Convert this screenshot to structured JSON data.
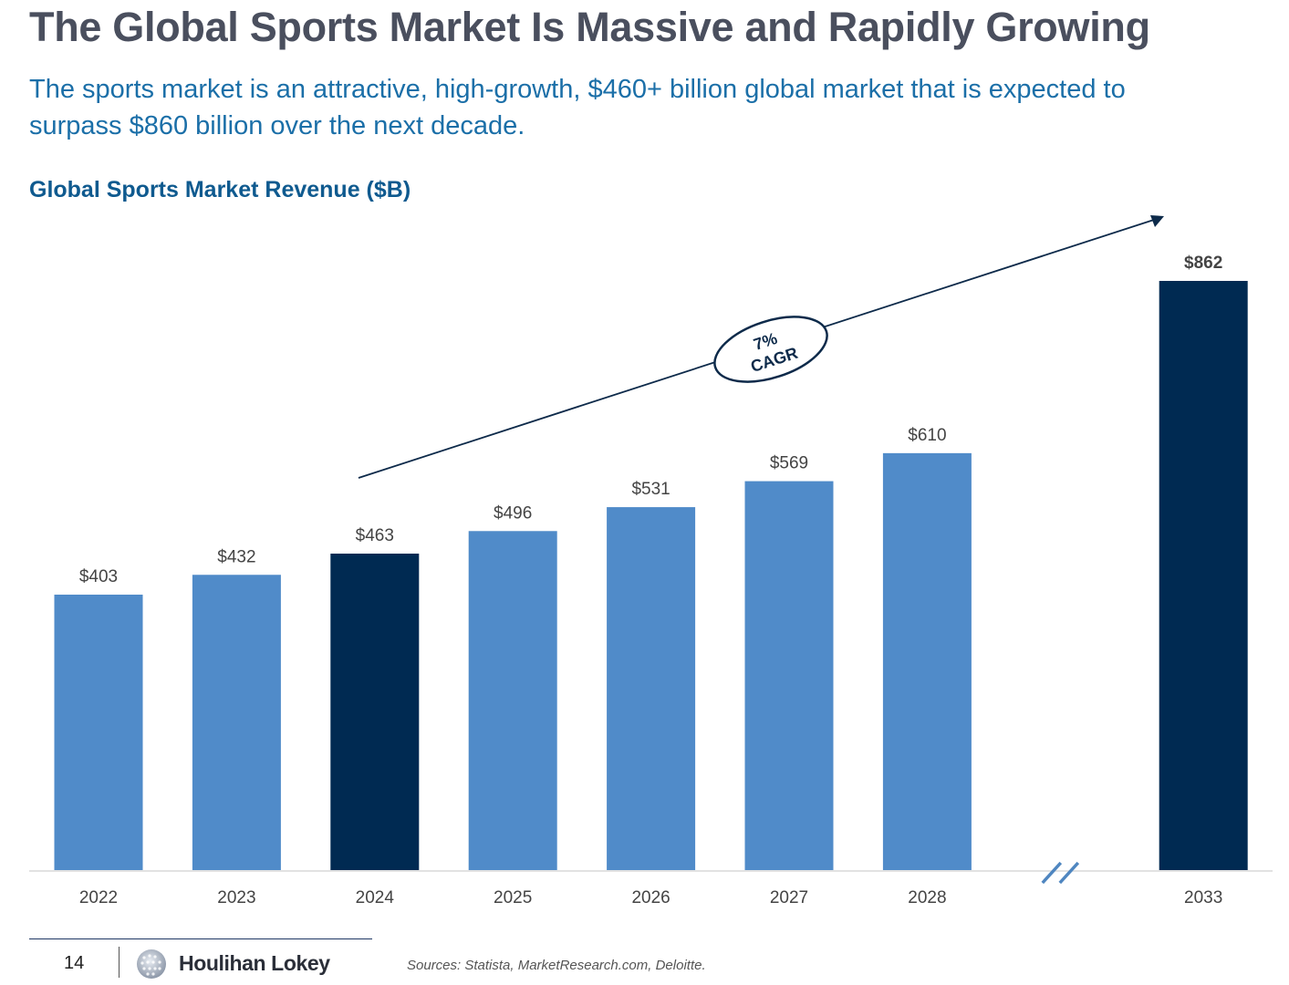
{
  "header": {
    "title": "The Global Sports Market Is Massive and Rapidly Growing",
    "subtitle": "The sports market is an attractive, high-growth, $460+ billion global market that is expected to surpass $860 billion over the next decade."
  },
  "chart_data": {
    "type": "bar",
    "title": "Global Sports Market Revenue ($B)",
    "categories": [
      "2022",
      "2023",
      "2024",
      "2025",
      "2026",
      "2027",
      "2028",
      "2033"
    ],
    "values": [
      403,
      432,
      463,
      496,
      531,
      569,
      610,
      862
    ],
    "data_labels": [
      "$403",
      "$432",
      "$463",
      "$496",
      "$531",
      "$569",
      "$610",
      "$862"
    ],
    "highlighted": [
      "2024",
      "2033"
    ],
    "axis_break_after": "2028",
    "ylim": [
      0,
      900
    ],
    "grid": false,
    "annotation": {
      "line1": "7%",
      "line2": "CAGR"
    },
    "colors": {
      "bar": "#508bc9",
      "bar_highlight": "#002a52",
      "arrow": "#0d2a4a",
      "axis": "#d9d9d9"
    }
  },
  "footer": {
    "page_number": "14",
    "brand": "Houlihan Lokey",
    "sources": "Sources: Statista, MarketResearch.com, Deloitte."
  }
}
